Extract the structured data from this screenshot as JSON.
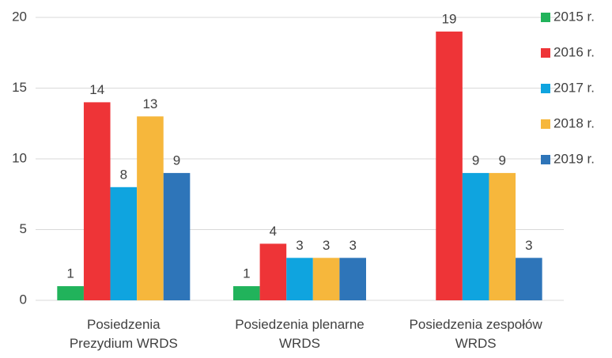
{
  "chart_data": {
    "type": "bar",
    "categories": [
      [
        "Posiedzenia",
        "Prezydium WRDS"
      ],
      [
        "Posiedzenia plenarne",
        "WRDS"
      ],
      [
        "Posiedzenia zespołów",
        "WRDS"
      ]
    ],
    "series": [
      {
        "name": "2015 r.",
        "color": "#21b35b",
        "values": [
          1,
          1,
          null
        ]
      },
      {
        "name": "2016 r.",
        "color": "#ee3437",
        "values": [
          14,
          4,
          19
        ]
      },
      {
        "name": "2017 r.",
        "color": "#0fa4df",
        "values": [
          8,
          3,
          9
        ]
      },
      {
        "name": "2018 r.",
        "color": "#f6b73c",
        "values": [
          13,
          3,
          9
        ]
      },
      {
        "name": "2019 r.",
        "color": "#2e75b9",
        "values": [
          9,
          3,
          3
        ]
      }
    ],
    "ylim": [
      0,
      20
    ],
    "yticks": [
      0,
      5,
      10,
      15,
      20
    ],
    "grid": true,
    "legend": "right"
  }
}
